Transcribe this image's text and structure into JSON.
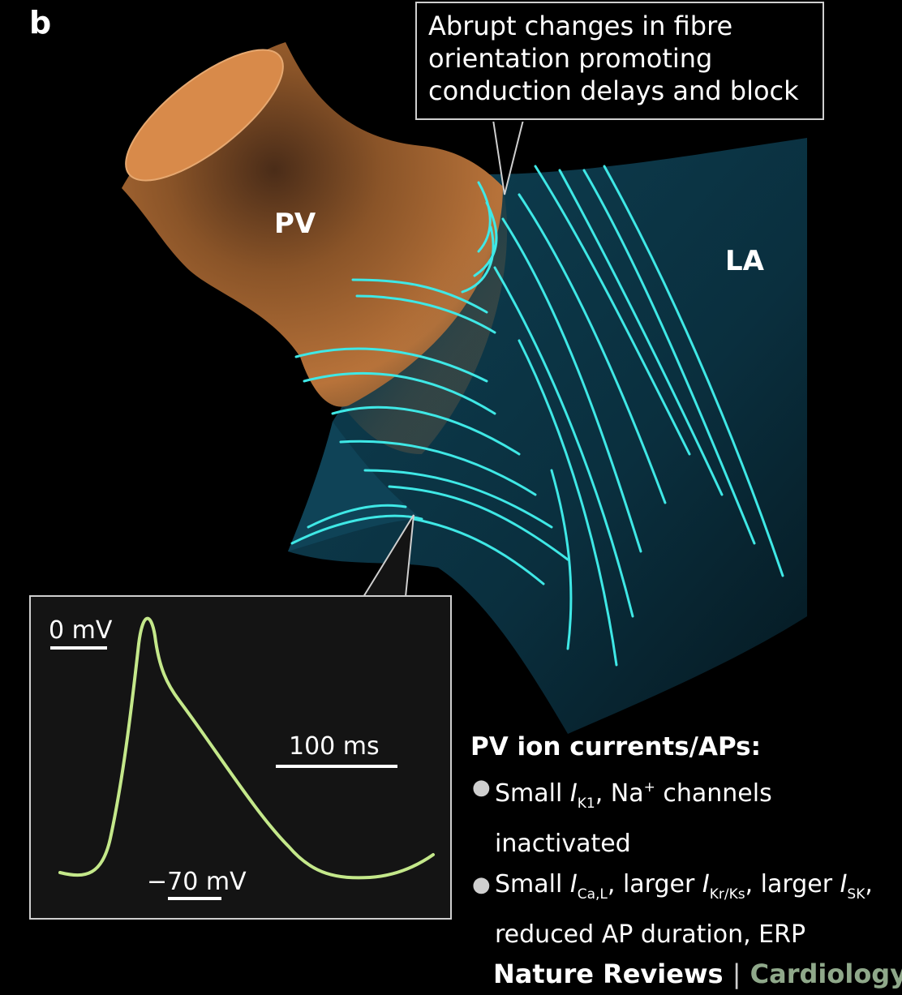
{
  "panel_letter": "b",
  "callout": {
    "line1": "Abrupt changes in fibre",
    "line2": "orientation promoting",
    "line3": "conduction delays and block"
  },
  "labels": {
    "pv": "PV",
    "la": "LA"
  },
  "inset": {
    "zero_label": "0 mV",
    "time_label": "100 ms",
    "rest_label": "−70 mV"
  },
  "info": {
    "heading": "PV ion currents/APs:",
    "b1_small": "Small ",
    "b1_I": "I",
    "b1_sub": "K1",
    "b1_mid": ", Na",
    "b1_sup": "+",
    "b1_rest": " channels",
    "b1_line2": "inactivated",
    "b2_small": "Small ",
    "b2_I1": "I",
    "b2_sub1": "Ca,L",
    "b2_mid1": ", larger ",
    "b2_I2": "I",
    "b2_sub2": "Kr/Ks",
    "b2_mid2": ", larger ",
    "b2_I3": "I",
    "b2_sub3": "SK",
    "b2_end": ",",
    "b2_line2": "reduced AP duration, ERP"
  },
  "footer": {
    "journal": "Nature Reviews",
    "separator": "|",
    "section": "Cardiology"
  },
  "colors": {
    "pv_vessel": "#b8733a",
    "atrium": "#0d3a4c",
    "fibres": "#3fe8e6",
    "trace": "#c4e88a"
  }
}
